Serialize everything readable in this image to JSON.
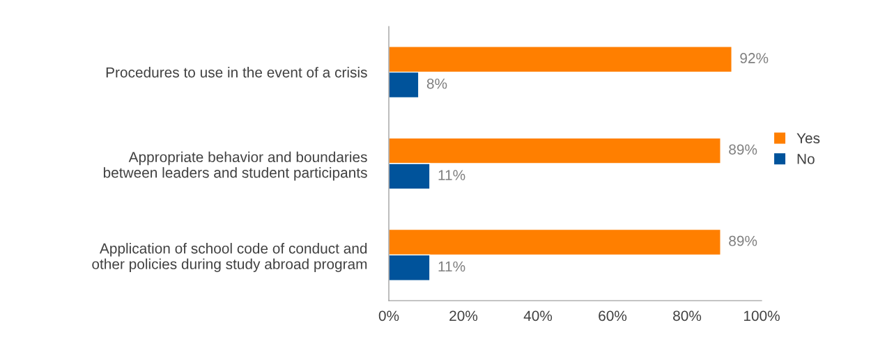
{
  "chart_data": {
    "type": "bar",
    "orientation": "horizontal",
    "categories": [
      "Procedures to use in the event of a crisis",
      "Appropriate behavior and boundaries\nbetween leaders and student participants",
      "Application of school code of conduct and\nother policies during study abroad program"
    ],
    "series": [
      {
        "name": "Yes",
        "color": "#ff7f00",
        "values": [
          92,
          89,
          89
        ],
        "value_labels": [
          "92%",
          "89%",
          "89%"
        ]
      },
      {
        "name": "No",
        "color": "#00539b",
        "values": [
          8,
          11,
          11
        ],
        "value_labels": [
          "8%",
          "11%",
          "11%"
        ]
      }
    ],
    "xlim": [
      0,
      100
    ],
    "xticks": [
      {
        "value": 0,
        "label": "0%"
      },
      {
        "value": 20,
        "label": "20%"
      },
      {
        "value": 40,
        "label": "40%"
      },
      {
        "value": 60,
        "label": "60%"
      },
      {
        "value": 80,
        "label": "80%"
      },
      {
        "value": 100,
        "label": "100%"
      }
    ],
    "grid": false,
    "legend": "right"
  }
}
